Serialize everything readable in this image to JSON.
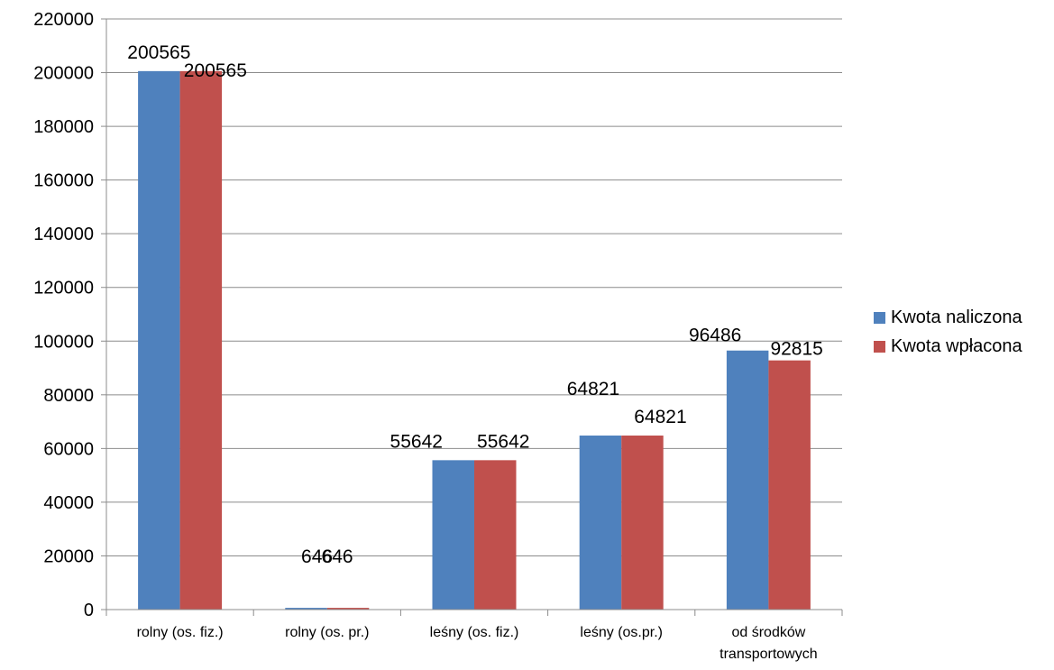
{
  "chart_data": {
    "type": "bar",
    "categories": [
      "rolny (os. fiz.)",
      "rolny (os. pr.)",
      "leśny (os. fiz.)",
      "leśny (os.pr.)",
      "od środków transportowych"
    ],
    "series": [
      {
        "name": "Kwota naliczona",
        "color": "#4F81BD",
        "values": [
          200565,
          646,
          55642,
          64821,
          96486
        ]
      },
      {
        "name": "Kwota wpłacona",
        "color": "#C0504D",
        "values": [
          200565,
          646,
          55642,
          64821,
          92815
        ]
      }
    ],
    "ylim": [
      0,
      220000
    ],
    "yticks": [
      0,
      20000,
      40000,
      60000,
      80000,
      100000,
      120000,
      140000,
      160000,
      180000,
      200000,
      220000
    ],
    "grid": true,
    "legend_position": "right",
    "data_labels": true
  }
}
